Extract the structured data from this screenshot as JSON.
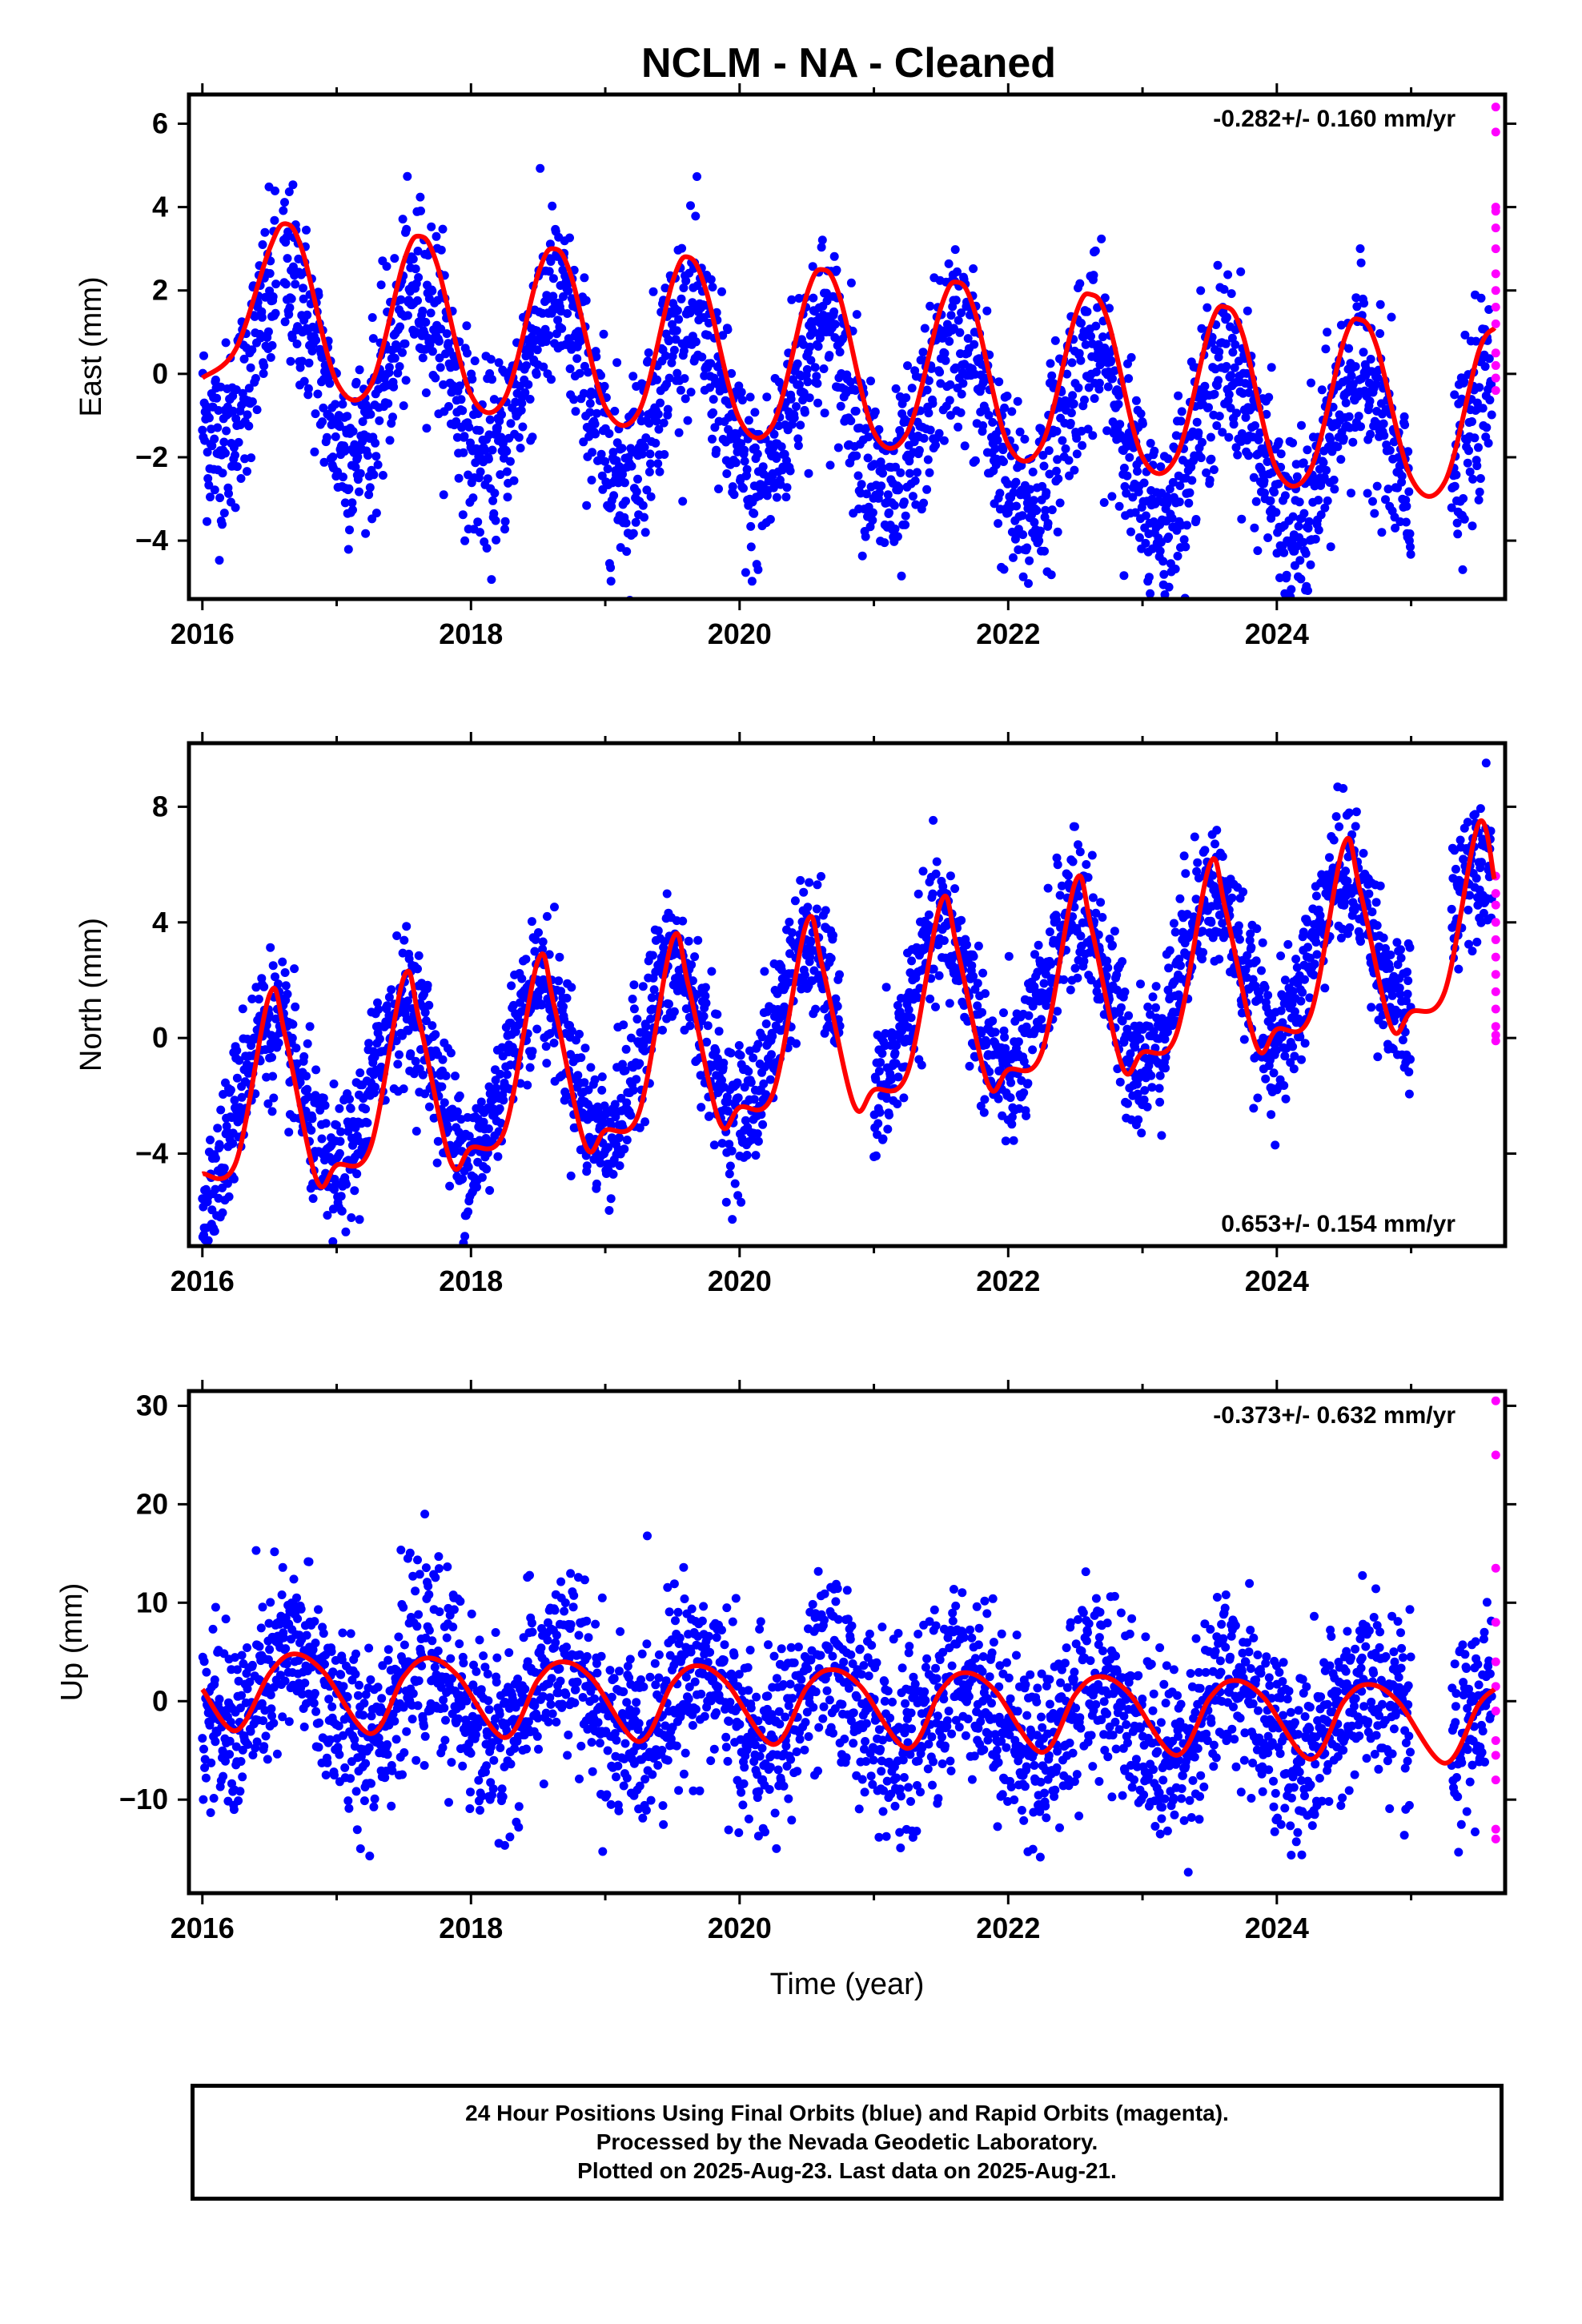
{
  "figure": {
    "title": "NCLM  - NA - Cleaned",
    "xlabel": "Time (year)",
    "footer": [
      "24 Hour Positions Using Final Orbits (blue) and Rapid Orbits (magenta).",
      "Processed by the Nevada Geodetic Laboratory.",
      "Plotted on 2025-Aug-23. Last data on 2025-Aug-21."
    ],
    "colors": {
      "final_orbits": "#0000ff",
      "rapid_orbits": "#ff00ff",
      "model_fit": "#ff0000",
      "axes": "#000000"
    }
  },
  "chart_data": [
    {
      "type": "scatter",
      "component": "East",
      "ylabel": "East (mm)",
      "rate_label": "-0.282+/- 0.160 mm/yr",
      "rate_position": "top-right",
      "xlim": [
        2015.9,
        2025.7
      ],
      "ylim": [
        -5.4,
        6.7
      ],
      "xticks": [
        2016,
        2018,
        2020,
        2022,
        2024
      ],
      "xtick_labels": [
        "2016",
        "2018",
        "2020",
        "2022",
        "2024"
      ],
      "yticks": [
        -4,
        -2,
        0,
        2,
        4,
        6
      ],
      "ytick_labels": [
        "−4",
        "−2",
        "0",
        "2",
        "4",
        "6"
      ],
      "final_orbit_points": {
        "x_start": 2016.0,
        "x_end": 2025.6,
        "trend": {
          "ref_year": 2016.0,
          "offset": 0.45,
          "rate": -0.282
        },
        "annual": {
          "amplitude": 2.0,
          "peak_phase": 0.62
        },
        "scatter_sd": 1.1,
        "gaps": [
          [
            2016.55,
            2016.6
          ],
          [
            2025.0,
            2025.3
          ]
        ]
      },
      "rapid_orbit_points": {
        "x": [
          2025.63,
          2025.63,
          2025.63,
          2025.63,
          2025.63,
          2025.63,
          2025.63,
          2025.63,
          2025.63,
          2025.63,
          2025.63,
          2025.63,
          2025.63,
          2025.63
        ],
        "y": [
          6.4,
          5.8,
          4.0,
          3.9,
          3.5,
          3.0,
          2.4,
          2.0,
          1.6,
          1.2,
          0.5,
          0.2,
          -0.1,
          -0.4
        ]
      },
      "model_fit": {
        "x": [
          2016.0,
          2016.25,
          2016.5,
          2016.62,
          2016.75,
          2017.0,
          2017.25,
          2017.5,
          2017.62,
          2017.75,
          2018.0,
          2018.25,
          2018.5,
          2018.62,
          2018.75,
          2019.0,
          2019.25,
          2019.5,
          2019.62,
          2019.75,
          2020.0,
          2020.25,
          2020.5,
          2020.62,
          2020.75,
          2021.0,
          2021.25,
          2021.5,
          2021.62,
          2021.75,
          2022.0,
          2022.25,
          2022.5,
          2022.62,
          2022.75,
          2023.0,
          2023.25,
          2023.5,
          2023.62,
          2023.75,
          2024.0,
          2024.25,
          2024.5,
          2024.62,
          2024.75,
          2025.0,
          2025.25,
          2025.5,
          2025.62
        ],
        "y": [
          -0.1,
          0.6,
          3.0,
          3.6,
          2.9,
          -0.2,
          -0.3,
          2.7,
          3.3,
          2.6,
          -0.5,
          -0.6,
          2.4,
          3.0,
          2.3,
          -0.8,
          -0.9,
          2.2,
          2.8,
          2.0,
          -1.1,
          -1.2,
          1.9,
          2.5,
          1.8,
          -1.4,
          -1.4,
          1.6,
          2.2,
          1.5,
          -1.7,
          -1.7,
          1.4,
          1.9,
          1.2,
          -2.0,
          -2.0,
          1.1,
          1.6,
          0.9,
          -2.3,
          -2.3,
          0.8,
          1.3,
          0.6,
          -2.5,
          -2.6,
          0.5,
          1.1
        ]
      }
    },
    {
      "type": "scatter",
      "component": "North",
      "ylabel": "North (mm)",
      "rate_label": "0.653+/- 0.154 mm/yr",
      "rate_position": "bottom-right",
      "xlim": [
        2015.9,
        2025.7
      ],
      "ylim": [
        -7.2,
        10.2
      ],
      "xticks": [
        2016,
        2018,
        2020,
        2022,
        2024
      ],
      "xtick_labels": [
        "2016",
        "2018",
        "2020",
        "2022",
        "2024"
      ],
      "yticks": [
        -4,
        0,
        4,
        8
      ],
      "ytick_labels": [
        "−4",
        "0",
        "4",
        "8"
      ],
      "final_orbit_points": {
        "x_start": 2016.0,
        "x_end": 2025.6,
        "trend": {
          "ref_year": 2016.0,
          "offset": -2.6,
          "rate": 0.653
        },
        "annual": {
          "amplitude": 2.8,
          "peak_phase": 0.5
        },
        "scatter_sd": 1.2,
        "gaps": [
          [
            2020.75,
            2021.0
          ],
          [
            2025.0,
            2025.3
          ]
        ]
      },
      "rapid_orbit_points": {
        "x": [
          2025.63,
          2025.63,
          2025.63,
          2025.63,
          2025.63,
          2025.63,
          2025.63,
          2025.63,
          2025.63,
          2025.63,
          2025.63,
          2025.63
        ],
        "y": [
          5.6,
          5.0,
          4.6,
          4.0,
          3.4,
          2.8,
          2.2,
          1.6,
          1.0,
          0.4,
          0.1,
          -0.1
        ]
      },
      "model_fit": {
        "x": [
          2016.0,
          2016.25,
          2016.5,
          2016.62,
          2016.85,
          2017.0,
          2017.25,
          2017.5,
          2017.62,
          2017.85,
          2018.0,
          2018.25,
          2018.5,
          2018.62,
          2018.85,
          2019.0,
          2019.25,
          2019.5,
          2019.62,
          2019.85,
          2020.0,
          2020.25,
          2020.5,
          2020.62,
          2020.85,
          2021.0,
          2021.25,
          2021.5,
          2021.62,
          2021.85,
          2022.0,
          2022.25,
          2022.5,
          2022.62,
          2022.85,
          2023.0,
          2023.25,
          2023.5,
          2023.62,
          2023.85,
          2024.0,
          2024.25,
          2024.5,
          2024.62,
          2024.85,
          2025.0,
          2025.25,
          2025.5,
          2025.62
        ],
        "y": [
          -4.7,
          -4.3,
          1.5,
          0.0,
          -4.9,
          -4.4,
          -3.8,
          2.1,
          0.5,
          -4.3,
          -3.8,
          -3.2,
          2.7,
          1.1,
          -3.7,
          -3.2,
          -2.6,
          3.4,
          1.8,
          -2.9,
          -2.4,
          -1.9,
          4.0,
          2.4,
          -2.3,
          -1.8,
          -1.2,
          4.7,
          3.1,
          -1.6,
          -1.1,
          -0.5,
          5.4,
          3.8,
          -1.0,
          -0.5,
          0.1,
          6.0,
          4.4,
          -0.3,
          0.3,
          0.8,
          6.7,
          5.1,
          0.4,
          0.9,
          1.6,
          7.4,
          5.5
        ]
      }
    },
    {
      "type": "scatter",
      "component": "Up",
      "ylabel": "Up (mm)",
      "rate_label": "-0.373+/- 0.632 mm/yr",
      "rate_position": "top-right",
      "xlim": [
        2015.9,
        2025.7
      ],
      "ylim": [
        -19.5,
        31.5
      ],
      "xticks": [
        2016,
        2018,
        2020,
        2022,
        2024
      ],
      "xtick_labels": [
        "2016",
        "2018",
        "2020",
        "2022",
        "2024"
      ],
      "yticks": [
        -10,
        0,
        10,
        20,
        30
      ],
      "ytick_labels": [
        "−10",
        "0",
        "10",
        "20",
        "30"
      ],
      "final_orbit_points": {
        "x_start": 2016.0,
        "x_end": 2025.6,
        "trend": {
          "ref_year": 2016.0,
          "offset": 1.0,
          "rate": -0.373
        },
        "annual": {
          "amplitude": 4.0,
          "peak_phase": 0.68
        },
        "scatter_sd": 4.6,
        "gaps": [
          [
            2025.0,
            2025.3
          ]
        ]
      },
      "rapid_orbit_points": {
        "x": [
          2025.63,
          2025.63,
          2025.63,
          2025.63,
          2025.63,
          2025.63,
          2025.63,
          2025.63,
          2025.63,
          2025.63,
          2025.63,
          2025.63
        ],
        "y": [
          30.5,
          25.0,
          13.5,
          8.0,
          4.0,
          1.5,
          -1.0,
          -4.0,
          -5.5,
          -8.0,
          -13.0,
          -14.0
        ]
      },
      "model_fit": {
        "x": [
          2016.0,
          2016.25,
          2016.5,
          2016.68,
          2016.9,
          2017.25,
          2017.5,
          2017.68,
          2017.9,
          2018.25,
          2018.5,
          2018.68,
          2018.9,
          2019.25,
          2019.5,
          2019.68,
          2019.9,
          2020.25,
          2020.5,
          2020.68,
          2020.9,
          2021.25,
          2021.5,
          2021.68,
          2021.9,
          2022.25,
          2022.5,
          2022.68,
          2022.9,
          2023.25,
          2023.5,
          2023.68,
          2023.9,
          2024.25,
          2024.5,
          2024.68,
          2024.9,
          2025.25,
          2025.5,
          2025.62
        ],
        "y": [
          1.2,
          -3.0,
          2.8,
          4.8,
          3.0,
          -3.3,
          2.5,
          4.4,
          2.6,
          -3.7,
          2.2,
          4.0,
          2.3,
          -4.1,
          1.8,
          3.6,
          1.9,
          -4.4,
          1.4,
          3.2,
          1.5,
          -4.8,
          1.1,
          2.9,
          1.1,
          -5.2,
          0.7,
          2.5,
          0.8,
          -5.5,
          0.3,
          2.1,
          0.4,
          -5.9,
          0.0,
          1.7,
          0.0,
          -6.3,
          -0.4,
          1.2
        ]
      }
    }
  ]
}
